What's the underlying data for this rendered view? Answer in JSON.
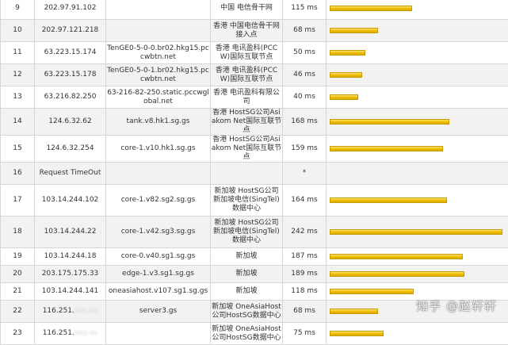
{
  "rows": [
    {
      "hop": "9",
      "ip": "202.97.91.102",
      "host": "",
      "location": "中国 电信骨干网",
      "rtt": "115 ms",
      "rtt_ms": 115,
      "h": 28
    },
    {
      "hop": "10",
      "ip": "202.97.121.218",
      "host": "",
      "location": "香港 中国电信骨干网接入点",
      "rtt": "68 ms",
      "rtt_ms": 68,
      "h": 28
    },
    {
      "hop": "11",
      "ip": "63.223.15.174",
      "host": "TenGE0-5-0-0.br02.hkg15.pccwbtn.net",
      "location": "香港 电讯盈科(PCCW)国际互联节点",
      "rtt": "50 ms",
      "rtt_ms": 50,
      "h": 28
    },
    {
      "hop": "12",
      "ip": "63.223.15.178",
      "host": "TenGE0-5-0-1.br02.hkg15.pccwbtn.net",
      "location": "香港 电讯盈科(PCCW)国际互联节点",
      "rtt": "46 ms",
      "rtt_ms": 46,
      "h": 28
    },
    {
      "hop": "13",
      "ip": "63.216.82.250",
      "host": "63-216-82-250.static.pccwglobal.net",
      "location": "香港 电讯盈科有限公司",
      "rtt": "40 ms",
      "rtt_ms": 40,
      "h": 28
    },
    {
      "hop": "14",
      "ip": "124.6.32.62",
      "host": "tank.v8.hk1.sg.gs",
      "location": "香港 HostSG公司Asiakom Net国际互联节点",
      "rtt": "168 ms",
      "rtt_ms": 168,
      "h": 28
    },
    {
      "hop": "15",
      "ip": "124.6.32.254",
      "host": "core-1.v10.hk1.sg.gs",
      "location": "香港 HostSG公司Asiakom Net国际互联节点",
      "rtt": "159 ms",
      "rtt_ms": 159,
      "h": 28
    },
    {
      "hop": "16",
      "ip": "Request TimeOut",
      "host": "",
      "location": "",
      "rtt": "*",
      "rtt_ms": 0,
      "h": 28
    },
    {
      "hop": "17",
      "ip": "103.14.244.102",
      "host": "core-1.v82.sg2.sg.gs",
      "location": "新加坡 HostSG公司新加坡电信(SingTel)数据中心",
      "rtt": "164 ms",
      "rtt_ms": 164,
      "h": 40
    },
    {
      "hop": "18",
      "ip": "103.14.244.22",
      "host": "core-1.v42.sg3.sg.gs",
      "location": "新加坡 HostSG公司新加坡电信(SingTel)数据中心",
      "rtt": "242 ms",
      "rtt_ms": 242,
      "h": 40
    },
    {
      "hop": "19",
      "ip": "103.14.244.18",
      "host": "core-0.v40.sg1.sg.gs",
      "location": "新加坡",
      "rtt": "187 ms",
      "rtt_ms": 187,
      "h": 22
    },
    {
      "hop": "20",
      "ip": "203.175.175.33",
      "host": "edge-1.v3.sg1.sg.gs",
      "location": "新加坡",
      "rtt": "189 ms",
      "rtt_ms": 189,
      "h": 22
    },
    {
      "hop": "21",
      "ip": "103.14.244.141",
      "host": "oneasiahost.v107.sg1.sg.gs",
      "location": "新加坡",
      "rtt": "118 ms",
      "rtt_ms": 118,
      "h": 22
    },
    {
      "hop": "22",
      "ip": "116.251.",
      "ip_masked": "xxx.xx",
      "host": "server3.gs",
      "location": "新加坡 OneAsiaHost公司HostSG数据中心",
      "rtt": "68 ms",
      "rtt_ms": 68,
      "h": 28
    },
    {
      "hop": "23",
      "ip": "116.251.",
      "ip_masked": "xxx.xx",
      "host": "",
      "location": "新加坡 OneAsiaHost公司HostSG数据中心",
      "rtt": "75 ms",
      "rtt_ms": 75,
      "h": 28
    }
  ],
  "max_rtt_ms": 242,
  "bar_color": "#f2c200",
  "watermark": "知乎 @赵轩轩"
}
